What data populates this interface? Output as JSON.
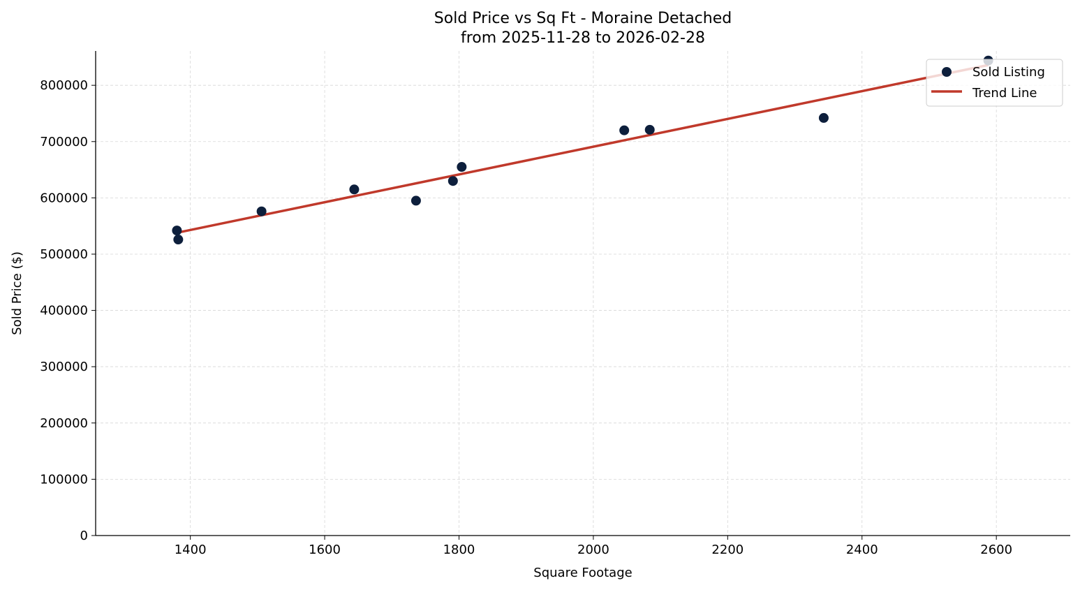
{
  "chart_data": {
    "type": "scatter",
    "title": "Sold Price vs Sq Ft - Moraine Detached",
    "subtitle": "from 2025-11-28 to 2026-02-28",
    "xlabel": "Square Footage",
    "ylabel": "Sold Price ($)",
    "xlim": [
      1259,
      2710
    ],
    "ylim": [
      0,
      861000
    ],
    "xticks": [
      1400,
      1600,
      1800,
      2000,
      2200,
      2400,
      2600
    ],
    "yticks": [
      0,
      100000,
      200000,
      300000,
      400000,
      500000,
      600000,
      700000,
      800000
    ],
    "grid": true,
    "legend_position": "top-right",
    "series": [
      {
        "name": "Sold Listing",
        "kind": "scatter",
        "color": "#0d1f3c",
        "points": [
          [
            1380,
            542000
          ],
          [
            1382,
            526000
          ],
          [
            1506,
            576000
          ],
          [
            1644,
            615000
          ],
          [
            1736,
            595000
          ],
          [
            1791,
            630000
          ],
          [
            1804,
            655000
          ],
          [
            2046,
            720000
          ],
          [
            2084,
            721000
          ],
          [
            2343,
            742000
          ],
          [
            2588,
            844000
          ]
        ]
      },
      {
        "name": "Trend Line",
        "kind": "line",
        "color": "#c0392b",
        "points": [
          [
            1380,
            538000
          ],
          [
            2588,
            836000
          ]
        ]
      }
    ]
  }
}
